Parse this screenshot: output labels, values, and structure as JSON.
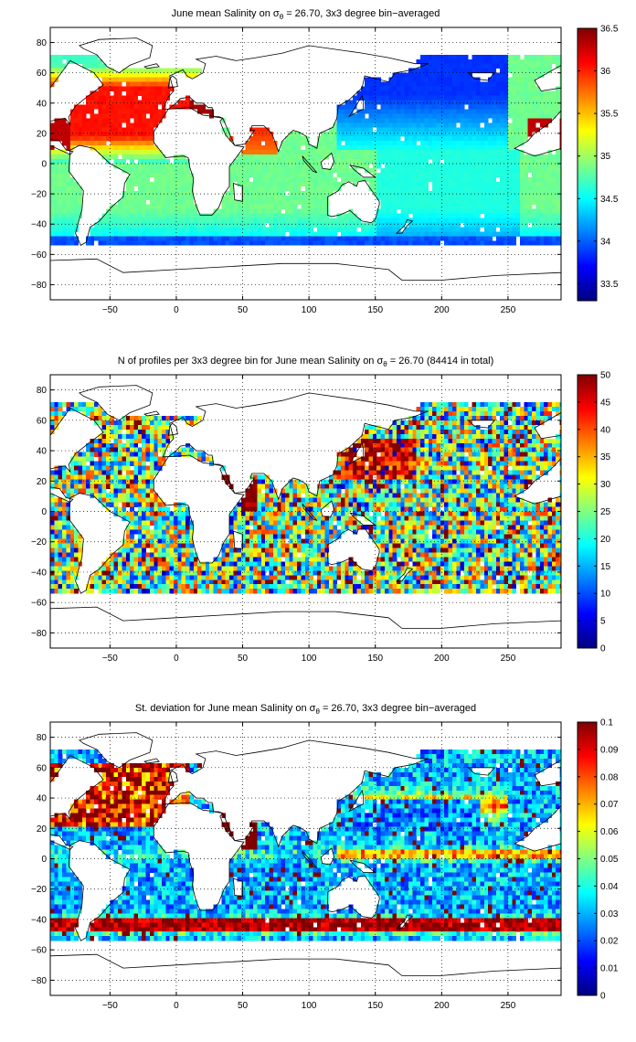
{
  "figure": {
    "colors": {
      "land": "#ffffff",
      "frame": "#000000",
      "grid": "#000000"
    }
  },
  "chart_data": [
    {
      "type": "heatmap",
      "title": {
        "pre": "June mean Salinity on ",
        "sym": "σ",
        "sub": "θ",
        "post": " = 26.70, 3x3 degree bin−averaged"
      },
      "xlabel": "",
      "ylabel": "",
      "xlim": [
        -95,
        290
      ],
      "ylim": [
        -90,
        90
      ],
      "xticks": [
        -50,
        0,
        50,
        100,
        150,
        200,
        250
      ],
      "xtick_labels": [
        "−50",
        "0",
        "50",
        "100",
        "150",
        "200",
        "250"
      ],
      "yticks": [
        80,
        60,
        40,
        20,
        0,
        -20,
        -40,
        -60,
        -80
      ],
      "ytick_labels": [
        "80",
        "60",
        "40",
        "20",
        "0",
        "−20",
        "−40",
        "−60",
        "−80"
      ],
      "grid": "dotted",
      "colormap": "jet",
      "colorbar": {
        "min": 33.3,
        "max": 36.5,
        "ticks": [
          33.5,
          34,
          34.5,
          35,
          35.5,
          36,
          36.5
        ],
        "tick_labels": [
          "33.5",
          "34",
          "34.5",
          "35",
          "35.5",
          "36",
          "36.5"
        ]
      },
      "bin_size_deg": 3,
      "field": "salinity"
    },
    {
      "type": "heatmap",
      "title": {
        "pre": "N of profiles per 3x3 degree bin for June mean Salinity on ",
        "sym": "σ",
        "sub": "θ",
        "post": " = 26.70 (84414 in total)"
      },
      "xlabel": "",
      "ylabel": "",
      "xlim": [
        -95,
        290
      ],
      "ylim": [
        -90,
        90
      ],
      "xticks": [
        -50,
        0,
        50,
        100,
        150,
        200,
        250
      ],
      "xtick_labels": [
        "−50",
        "0",
        "50",
        "100",
        "150",
        "200",
        "250"
      ],
      "yticks": [
        80,
        60,
        40,
        20,
        0,
        -20,
        -40,
        -60,
        -80
      ],
      "ytick_labels": [
        "80",
        "60",
        "40",
        "20",
        "0",
        "−20",
        "−40",
        "−60",
        "−80"
      ],
      "grid": "dotted",
      "colormap": "jet",
      "colorbar": {
        "min": 0,
        "max": 50,
        "ticks": [
          0,
          5,
          10,
          15,
          20,
          25,
          30,
          35,
          40,
          45,
          50
        ],
        "tick_labels": [
          "0",
          "5",
          "10",
          "15",
          "20",
          "25",
          "30",
          "35",
          "40",
          "45",
          "50"
        ]
      },
      "total_profiles": 84414,
      "bin_size_deg": 3,
      "field": "count"
    },
    {
      "type": "heatmap",
      "title": {
        "pre": "St. deviation for June mean Salinity on ",
        "sym": "σ",
        "sub": "θ",
        "post": " = 26.70, 3x3 degree bin−averaged"
      },
      "xlabel": "",
      "ylabel": "",
      "xlim": [
        -95,
        290
      ],
      "ylim": [
        -90,
        90
      ],
      "xticks": [
        -50,
        0,
        50,
        100,
        150,
        200,
        250
      ],
      "xtick_labels": [
        "−50",
        "0",
        "50",
        "100",
        "150",
        "200",
        "250"
      ],
      "yticks": [
        80,
        60,
        40,
        20,
        0,
        -20,
        -40,
        -60,
        -80
      ],
      "ytick_labels": [
        "80",
        "60",
        "40",
        "20",
        "0",
        "−20",
        "−40",
        "−60",
        "−80"
      ],
      "grid": "dotted",
      "colormap": "jet",
      "colorbar": {
        "min": 0,
        "max": 0.1,
        "ticks": [
          0,
          0.01,
          0.02,
          0.03,
          0.04,
          0.05,
          0.06,
          0.07,
          0.08,
          0.09,
          0.1
        ],
        "tick_labels": [
          "0",
          "0.01",
          "0.02",
          "0.03",
          "0.04",
          "0.05",
          "0.06",
          "0.07",
          "0.08",
          "0.09",
          "0.1"
        ]
      },
      "bin_size_deg": 3,
      "field": "std"
    }
  ]
}
